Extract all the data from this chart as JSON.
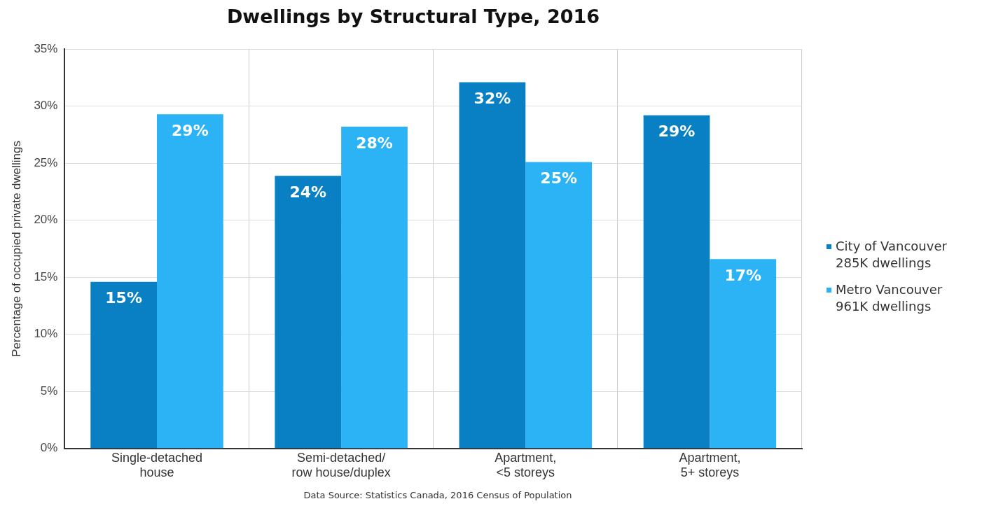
{
  "chart_data": {
    "type": "bar",
    "title": "Dwellings by Structural Type, 2016",
    "ylabel": "Percentage of occupied private dwellings",
    "categories": [
      "Single-detached\nhouse",
      "Semi-detached/\nrow house/duplex",
      "Apartment,\n<5 storeys",
      "Apartment,\n5+ storeys"
    ],
    "series": [
      {
        "name": "City of Vancouver\n285K dwellings",
        "color": "#0a80c4",
        "values": [
          14.6,
          23.9,
          32.1,
          29.2
        ],
        "value_labels": [
          "15%",
          "24%",
          "32%",
          "29%"
        ]
      },
      {
        "name": "Metro Vancouver\n961K dwellings",
        "color": "#2bb3f5",
        "values": [
          29.3,
          28.2,
          25.1,
          16.6
        ],
        "value_labels": [
          "29%",
          "28%",
          "25%",
          "17%"
        ]
      }
    ],
    "ylim": [
      0,
      35
    ],
    "yticks": [
      {
        "value": 0,
        "label": "0%"
      },
      {
        "value": 5,
        "label": "5%"
      },
      {
        "value": 10,
        "label": "10%"
      },
      {
        "value": 15,
        "label": "15%"
      },
      {
        "value": 20,
        "label": "20%"
      },
      {
        "value": 25,
        "label": "25%"
      },
      {
        "value": 30,
        "label": "30%"
      },
      {
        "value": 35,
        "label": "35%"
      }
    ],
    "grid": true,
    "legend": "right",
    "annotations": [
      "Data Source: Statistics Canada, 2016 Census of Population"
    ]
  }
}
